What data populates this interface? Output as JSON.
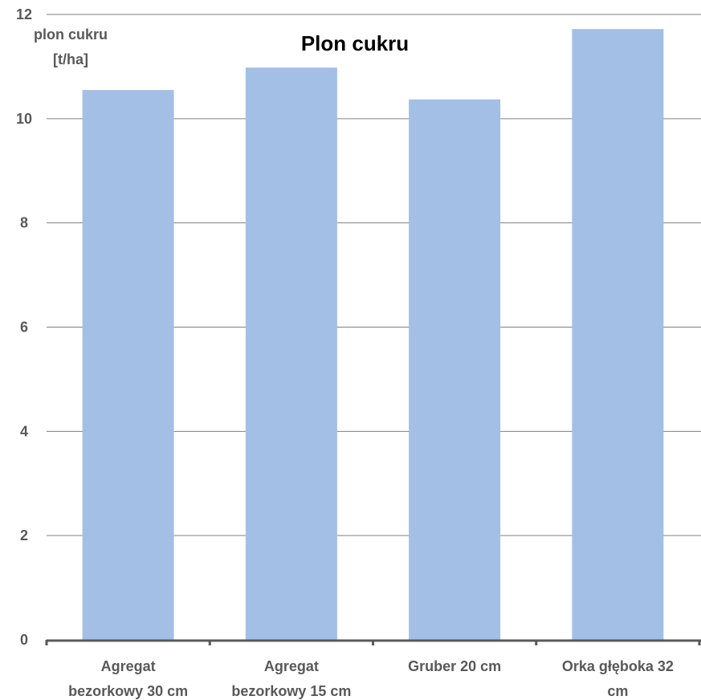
{
  "chart_data": {
    "type": "bar",
    "title": "Plon cukru",
    "ylabel_lines": [
      "plon cukru",
      "[t/ha]"
    ],
    "xlabel": "",
    "categories": [
      [
        "Agregat",
        "bezorkowy 30 cm"
      ],
      [
        "Agregat",
        "bezorkowy 15 cm"
      ],
      [
        "Gruber 20 cm"
      ],
      [
        "Orka głęboka 32",
        "cm"
      ]
    ],
    "values": [
      10.55,
      10.98,
      10.37,
      11.72
    ],
    "ylim": [
      0,
      12
    ],
    "yticks": [
      "0",
      "2",
      "4",
      "6",
      "8",
      "10",
      "12"
    ],
    "grid": true,
    "legend": "none",
    "bar_color": "#a3bfe5",
    "grid_color": "#808080",
    "axis_color": "#595959"
  }
}
